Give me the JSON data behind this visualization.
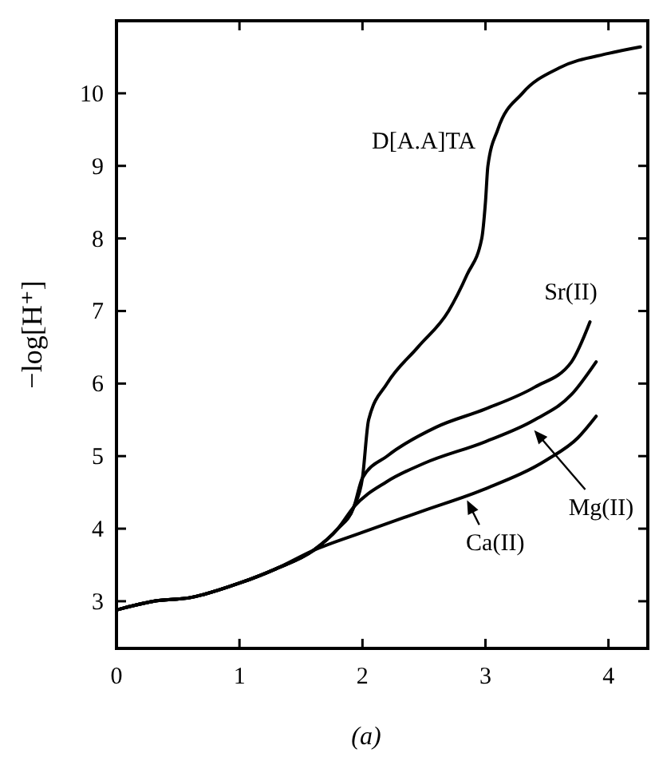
{
  "chart_data": {
    "type": "line",
    "ylabel": "−log[H⁺]",
    "annotations": [
      "(a)"
    ],
    "xlim": [
      0,
      4.32
    ],
    "ylim": [
      2.35,
      11
    ],
    "xticks": [
      0,
      1,
      2,
      3,
      4
    ],
    "yticks": [
      3,
      4,
      5,
      6,
      7,
      8,
      9,
      10
    ],
    "grid": false,
    "legend": "bottom right",
    "marker": "none",
    "line_style": "solid",
    "color": "#000000",
    "series": [
      {
        "name": "D[A.A]TA",
        "x": [
          0,
          0.3,
          0.6,
          1,
          1.3,
          1.6,
          1.8,
          1.93,
          2.0,
          2.05,
          2.2,
          2.45,
          2.7,
          2.85,
          2.97,
          3.0,
          3.02,
          3.1,
          3.3,
          3.6,
          4.0,
          4.26
        ],
        "values": [
          2.88,
          3.0,
          3.05,
          3.25,
          3.45,
          3.7,
          4.0,
          4.3,
          4.7,
          5.5,
          6.0,
          6.5,
          7.0,
          7.5,
          8.0,
          8.5,
          9.0,
          9.5,
          10.0,
          10.35,
          10.55,
          10.64
        ]
      },
      {
        "name": "Sr(II)",
        "x": [
          0,
          0.3,
          0.6,
          1,
          1.3,
          1.6,
          1.8,
          1.93,
          2.0,
          2.2,
          2.6,
          3.0,
          3.4,
          3.7,
          3.85
        ],
        "values": [
          2.88,
          3.0,
          3.05,
          3.25,
          3.45,
          3.7,
          4.0,
          4.3,
          4.7,
          5.0,
          5.4,
          5.65,
          5.95,
          6.3,
          6.85
        ]
      },
      {
        "name": "Mg(II)",
        "x": [
          0,
          0.3,
          0.6,
          1,
          1.3,
          1.6,
          1.8,
          1.93,
          2.2,
          2.5,
          3.0,
          3.4,
          3.7,
          3.9
        ],
        "values": [
          2.88,
          3.0,
          3.05,
          3.25,
          3.45,
          3.7,
          4.0,
          4.3,
          4.65,
          4.9,
          5.2,
          5.5,
          5.85,
          6.3
        ]
      },
      {
        "name": "Ca(II)",
        "x": [
          0,
          0.3,
          0.6,
          1,
          1.3,
          1.6,
          2.0,
          2.5,
          3.0,
          3.5,
          3.75,
          3.9
        ],
        "values": [
          2.88,
          3.0,
          3.05,
          3.25,
          3.45,
          3.7,
          3.95,
          4.25,
          4.55,
          4.95,
          5.25,
          5.55
        ]
      }
    ]
  }
}
